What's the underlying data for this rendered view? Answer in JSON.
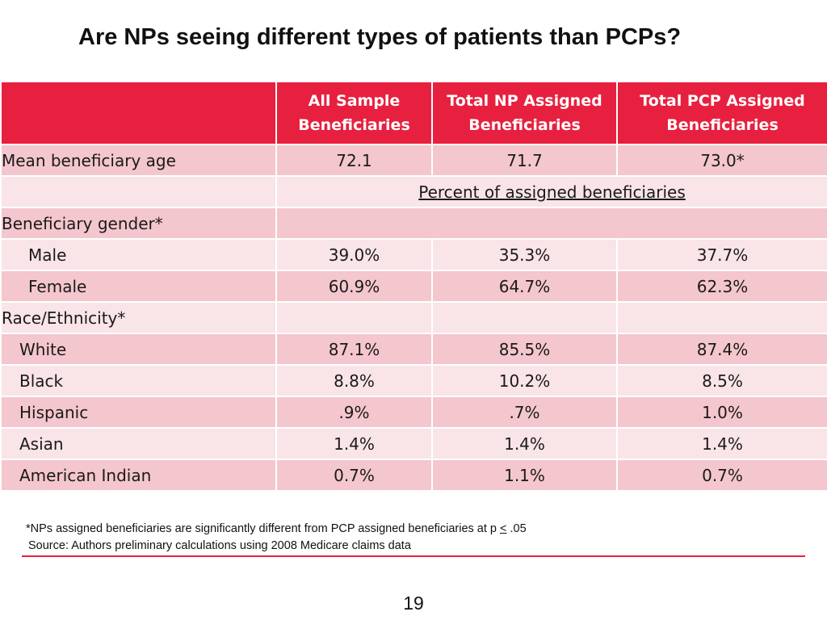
{
  "title": "Are NPs seeing different types of patients than PCPs?",
  "table": {
    "columns": [
      "",
      "All Sample Beneficiaries",
      "Total NP Assigned Beneficiaries",
      "Total PCP Assigned Beneficiaries"
    ],
    "mean_age": {
      "label": "Mean beneficiary age",
      "values": [
        "72.1",
        "71.7",
        "73.0*"
      ]
    },
    "subheader": "Percent of assigned beneficiaries",
    "gender_label": "Beneficiary gender*",
    "male": {
      "label": "Male",
      "values": [
        "39.0%",
        "35.3%",
        "37.7%"
      ]
    },
    "female": {
      "label": "Female",
      "values": [
        "60.9%",
        "64.7%",
        "62.3%"
      ]
    },
    "race_label": "Race/Ethnicity*",
    "white": {
      "label": "White",
      "values": [
        "87.1%",
        "85.5%",
        "87.4%"
      ]
    },
    "black": {
      "label": "Black",
      "values": [
        "8.8%",
        "10.2%",
        "8.5%"
      ]
    },
    "hispanic": {
      "label": "Hispanic",
      "values": [
        ".9%",
        ".7%",
        "1.0%"
      ]
    },
    "asian": {
      "label": "Asian",
      "values": [
        "1.4%",
        "1.4%",
        "1.4%"
      ]
    },
    "american_indian": {
      "label": "American Indian",
      "values": [
        "0.7%",
        "1.1%",
        "0.7%"
      ]
    }
  },
  "footnote": {
    "prefix": "*NPs assigned beneficiaries are significantly different from PCP assigned beneficiaries at p ",
    "le": "<",
    "suffix": " .05"
  },
  "source": "Source: Authors preliminary calculations using 2008 Medicare claims data",
  "page_number": "19",
  "colors": {
    "accent": "#e8203f",
    "row_dark": "#f4c6cd",
    "row_light": "#f9e4e7"
  }
}
